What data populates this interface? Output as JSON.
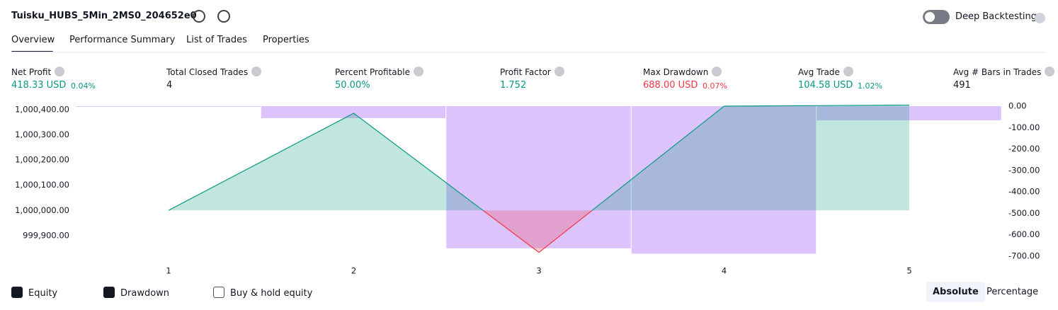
{
  "header": {
    "title": "Tuisku_HUBS_5Min_2MS0_204652e0",
    "deep_backtesting": "Deep Backtesting"
  },
  "tabs": [
    "Overview",
    "Performance Summary",
    "List of Trades",
    "Properties"
  ],
  "metrics": [
    {
      "label": "Net Profit",
      "value": "418.33 USD",
      "pct": "0.04%",
      "tone": "pos"
    },
    {
      "label": "Total Closed Trades",
      "value": "4",
      "tone": "neutral"
    },
    {
      "label": "Percent Profitable",
      "value": "50.00%",
      "tone": "pos"
    },
    {
      "label": "Profit Factor",
      "value": "1.752",
      "tone": "pos"
    },
    {
      "label": "Max Drawdown",
      "value": "688.00 USD",
      "pct": "0.07%",
      "tone": "neg"
    },
    {
      "label": "Avg Trade",
      "value": "104.58 USD",
      "pct": "1.02%",
      "tone": "pos"
    },
    {
      "label": "Avg # Bars in Trades",
      "value": "491",
      "tone": "neutral"
    }
  ],
  "chart_data": {
    "type": "line",
    "categories": [
      "1",
      "2",
      "3",
      "4",
      "5"
    ],
    "series": [
      {
        "name": "Equity",
        "color": "#089981",
        "values": [
          1000000,
          1000386,
          999833,
          1000414,
          1000418.33
        ]
      },
      {
        "name": "Drawdown",
        "color": "#d7b8fb",
        "type": "bar",
        "axis": "y2",
        "values": [
          0,
          -56,
          -663,
          -688,
          -66
        ]
      }
    ],
    "ylim": [
      999818,
      1000414
    ],
    "yticks": [
      {
        "value": 999900,
        "label": "999,900.00"
      },
      {
        "value": 1000000,
        "label": "1,000,000.00"
      },
      {
        "value": 1000100,
        "label": "1,000,100.00"
      },
      {
        "value": 1000200,
        "label": "1,000,200.00"
      },
      {
        "value": 1000300,
        "label": "1,000,300.00"
      },
      {
        "value": 1000400,
        "label": "1,000,400.00"
      }
    ],
    "y2lim": [
      -700,
      0
    ],
    "y2ticks": [
      {
        "value": 0,
        "label": "0.00"
      },
      {
        "value": -100,
        "label": "-100.00"
      },
      {
        "value": -200,
        "label": "-200.00"
      },
      {
        "value": -300,
        "label": "-300.00"
      },
      {
        "value": -400,
        "label": "-400.00"
      },
      {
        "value": -500,
        "label": "-500.00"
      },
      {
        "value": -600,
        "label": "-600.00"
      },
      {
        "value": -700,
        "label": "-700.00"
      }
    ],
    "negative_color": "#f23645"
  },
  "footer": {
    "checks": [
      {
        "label": "Equity",
        "checked": true
      },
      {
        "label": "Drawdown",
        "checked": true
      },
      {
        "label": "Buy & hold equity",
        "checked": false
      }
    ],
    "modes": [
      "Absolute",
      "Percentage"
    ]
  }
}
